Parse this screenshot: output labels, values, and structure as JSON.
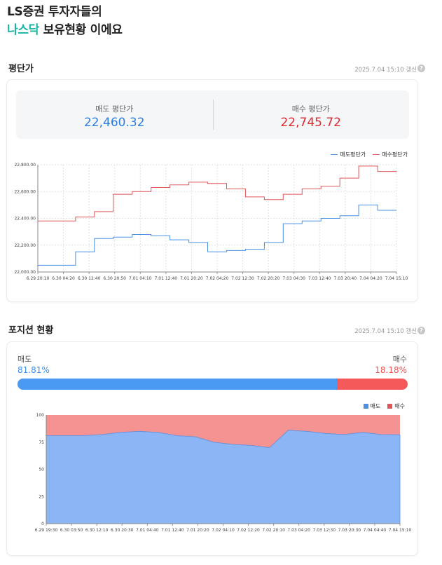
{
  "headline": {
    "line1": "LS증권 투자자들의",
    "accent": "나스닥",
    "rest": " 보유현황 이에요"
  },
  "avg_section": {
    "title": "평단가",
    "updated": "2025.7.04 15:10 갱신",
    "help_icon": "help-icon",
    "sell": {
      "label": "매도 평단가",
      "value": "22,460.32"
    },
    "buy": {
      "label": "매수 평단가",
      "value": "22,745.72"
    }
  },
  "pos_section": {
    "title": "포지션 현황",
    "updated": "2025.7.04 15:10 갱신",
    "sell": {
      "label": "매도",
      "value": "81.81%"
    },
    "buy": {
      "label": "매수",
      "value": "18.18%"
    },
    "sell_ratio": 0.8181
  },
  "colors": {
    "blue": "#4a90e2",
    "red": "#e0565b",
    "accent": "#1ab3a0",
    "area_blue": "#8bb5f5",
    "area_red": "#f59393"
  },
  "chart_data": [
    {
      "type": "line",
      "legend": [
        "매도평단가",
        "매수평단가"
      ],
      "ylim": [
        22000,
        22800
      ],
      "yticks": [
        "22,000.00",
        "22,200.00",
        "22,400.00",
        "22,600.00",
        "22,800.00"
      ],
      "x_ticks": [
        "6.29 20:10",
        "6.30 04:20",
        "6.30 12:40",
        "6.30 20:50",
        "7.01 04:10",
        "7.01 12:40",
        "7.01 20:20",
        "7.02 04:20",
        "7.02 12:30",
        "7.02 20:20",
        "7.03 04:30",
        "7.03 12:40",
        "7.03 20:40",
        "7.04 04:20",
        "7.04 15:10"
      ],
      "series": [
        {
          "name": "매도평단가",
          "values": [
            22050,
            22050,
            22150,
            22250,
            22260,
            22280,
            22270,
            22240,
            22220,
            22150,
            22160,
            22170,
            22220,
            22360,
            22380,
            22400,
            22420,
            22500,
            22460,
            22460
          ]
        },
        {
          "name": "매수평단가",
          "values": [
            22380,
            22380,
            22410,
            22450,
            22580,
            22600,
            22630,
            22650,
            22670,
            22660,
            22620,
            22560,
            22540,
            22580,
            22620,
            22640,
            22700,
            22790,
            22750,
            22745
          ]
        }
      ]
    },
    {
      "type": "area",
      "legend": [
        "매도",
        "매수"
      ],
      "ylim": [
        0,
        100
      ],
      "yticks": [
        "0",
        "25",
        "50",
        "75",
        "100"
      ],
      "x_ticks": [
        "6.29 19:30",
        "6.30 03:50",
        "6.30 12:10",
        "6.30 20:30",
        "7.01 04:40",
        "7.01 12:40",
        "7.01 20:20",
        "7.02 04:10",
        "7.02 12:20",
        "7.02 20:10",
        "7.03 04:20",
        "7.03 12:30",
        "7.03 20:30",
        "7.04 04:40",
        "7.04 15:10"
      ],
      "series": [
        {
          "name": "매도",
          "values": [
            81,
            81,
            81,
            82,
            84,
            85,
            84,
            81,
            80,
            75,
            73,
            72,
            70,
            86,
            85,
            83,
            82,
            84,
            82,
            81.81
          ]
        },
        {
          "name": "매수",
          "values": [
            19,
            19,
            19,
            18,
            16,
            15,
            16,
            19,
            20,
            25,
            27,
            28,
            30,
            14,
            15,
            17,
            18,
            16,
            18,
            18.18
          ]
        }
      ]
    }
  ]
}
